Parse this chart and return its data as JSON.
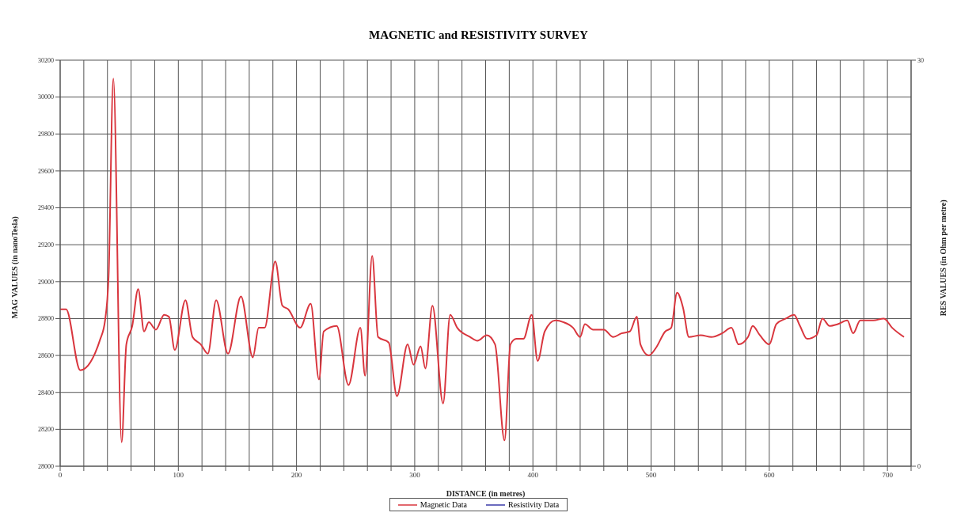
{
  "chart_data": {
    "type": "line",
    "title": "MAGNETIC and RESISTIVITY SURVEY",
    "xlabel": "DISTANCE (in metres)",
    "ylabel": "MAG VALUES (in nanoTesla)",
    "y2label": "RES VALUES (in Ohm per metre)",
    "x": [
      0,
      5,
      17,
      34,
      38,
      41,
      45,
      52,
      56,
      61,
      66,
      71,
      75,
      81,
      88,
      92,
      97,
      106,
      112,
      119,
      125,
      132,
      142,
      153,
      163,
      168,
      173,
      182,
      188,
      193,
      203,
      212,
      219,
      223,
      234,
      244,
      254,
      258,
      264,
      269,
      278,
      285,
      294,
      299,
      305,
      309,
      315,
      324,
      330,
      336,
      347,
      353,
      361,
      368,
      376,
      381,
      386,
      392,
      399,
      404,
      410,
      419,
      426,
      434,
      440,
      444,
      451,
      460,
      468,
      475,
      482,
      488,
      491,
      498,
      504,
      512,
      517,
      522,
      527,
      532,
      542,
      551,
      560,
      568,
      574,
      582,
      586,
      592,
      600,
      606,
      614,
      621,
      626,
      632,
      640,
      645,
      651,
      658,
      666,
      671,
      677,
      688,
      697,
      704,
      714
    ],
    "series": [
      {
        "name": "Magnetic Data",
        "color": "#d9363e",
        "values": [
          28850,
          28850,
          28520,
          28690,
          28790,
          29030,
          30100,
          28130,
          28660,
          28760,
          28960,
          28730,
          28780,
          28740,
          28820,
          28810,
          28630,
          28900,
          28700,
          28660,
          28610,
          28900,
          28610,
          28920,
          28590,
          28750,
          28750,
          29110,
          28870,
          28850,
          28750,
          28880,
          28470,
          28730,
          28760,
          28440,
          28750,
          28490,
          29140,
          28700,
          28670,
          28380,
          28660,
          28550,
          28650,
          28530,
          28870,
          28340,
          28820,
          28750,
          28700,
          28680,
          28710,
          28660,
          28140,
          28660,
          28690,
          28690,
          28820,
          28570,
          28730,
          28790,
          28780,
          28750,
          28700,
          28770,
          28740,
          28740,
          28700,
          28720,
          28730,
          28810,
          28660,
          28600,
          28640,
          28730,
          28750,
          28940,
          28860,
          28700,
          28710,
          28700,
          28720,
          28750,
          28660,
          28700,
          28760,
          28710,
          28660,
          28770,
          28800,
          28820,
          28760,
          28690,
          28710,
          28800,
          28760,
          28770,
          28790,
          28720,
          28790,
          28790,
          28800,
          28750,
          28700
        ]
      },
      {
        "name": "Resistivity Data",
        "color": "#3a3aa8",
        "values": [
          null,
          null,
          null,
          null,
          null,
          null,
          null,
          null,
          null,
          null,
          null,
          null,
          null,
          null,
          null,
          null,
          null,
          null,
          null,
          null,
          null,
          null,
          null,
          null,
          null,
          null,
          null,
          null,
          null,
          null,
          null,
          null,
          null,
          null,
          null,
          null,
          null,
          null,
          null,
          null,
          null,
          null,
          null,
          null,
          null,
          null,
          null,
          null,
          null,
          null,
          null,
          null,
          null,
          null,
          null,
          null,
          null,
          null,
          null,
          null,
          null,
          null,
          null,
          null,
          null,
          null,
          null,
          null,
          null,
          null,
          null,
          null,
          null,
          null,
          null,
          null,
          null,
          null,
          null,
          null,
          null,
          null,
          null,
          null,
          null,
          null,
          null,
          null,
          null,
          null,
          null,
          null,
          null,
          null,
          null,
          null,
          null,
          null,
          null,
          null,
          null,
          null,
          null,
          null,
          null
        ]
      }
    ],
    "xlim": [
      0,
      720
    ],
    "xticks": [
      0,
      {
        "value": 20,
        "label": null
      },
      {
        "value": 40,
        "label": null
      },
      {
        "value": 60,
        "label": null
      },
      {
        "value": 80,
        "label": null
      },
      100,
      {
        "value": 120,
        "label": null
      },
      {
        "value": 140,
        "label": null
      },
      {
        "value": 160,
        "label": null
      },
      {
        "value": 180,
        "label": null
      },
      200,
      {
        "value": 220,
        "label": null
      },
      {
        "value": 240,
        "label": null
      },
      {
        "value": 260,
        "label": null
      },
      {
        "value": 280,
        "label": null
      },
      300,
      {
        "value": 320,
        "label": null
      },
      {
        "value": 340,
        "label": null
      },
      {
        "value": 360,
        "label": null
      },
      {
        "value": 380,
        "label": null
      },
      400,
      {
        "value": 420,
        "label": null
      },
      {
        "value": 440,
        "label": null
      },
      {
        "value": 460,
        "label": null
      },
      {
        "value": 480,
        "label": null
      },
      500,
      {
        "value": 520,
        "label": null
      },
      {
        "value": 540,
        "label": null
      },
      {
        "value": 560,
        "label": null
      },
      {
        "value": 580,
        "label": null
      },
      600,
      {
        "value": 620,
        "label": null
      },
      {
        "value": 640,
        "label": null
      },
      {
        "value": 660,
        "label": null
      },
      {
        "value": 680,
        "label": null
      },
      700,
      {
        "value": 720,
        "label": null
      }
    ],
    "ylim": [
      28000,
      30200
    ],
    "yticks": [
      28000,
      28200,
      28400,
      28600,
      28800,
      29000,
      29200,
      29400,
      29600,
      29800,
      30000,
      30200
    ],
    "y2lim": [
      0,
      30
    ],
    "y2ticks": [
      0,
      30
    ],
    "grid": true,
    "legend": "bottom",
    "marker": "none",
    "line_style": "solid"
  }
}
